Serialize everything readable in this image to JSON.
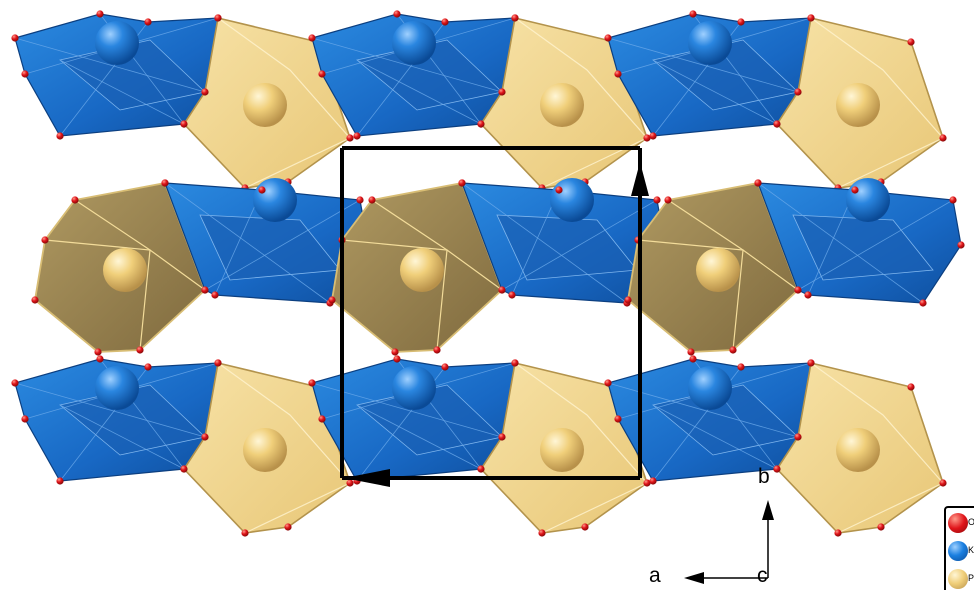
{
  "colors": {
    "k_polyhedron": "#1f7fd6",
    "p_polyhedron": "#f2d68a",
    "p_polyhedron_dark": "#9c8552",
    "o_atom": "#d8201c",
    "k_atom": "#1a72d6",
    "p_atom": "#e9c35c",
    "cell_edge": "#000000"
  },
  "axes": {
    "b_label": "b",
    "a_label": "a",
    "c_label": "c"
  },
  "legend": {
    "items": [
      {
        "symbol": "O",
        "color": "#e0141a"
      },
      {
        "symbol": "K",
        "color": "#1a7fe0"
      },
      {
        "symbol": "P",
        "color": "#f0cf7a"
      }
    ]
  }
}
